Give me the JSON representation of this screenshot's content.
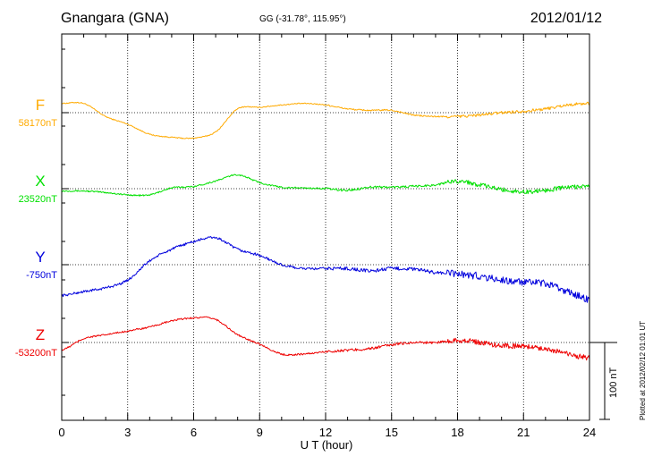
{
  "header": {
    "station": "Gnangara (GNA)",
    "coords": "GG (-31.78°, 115.95°)",
    "date": "2012/01/12"
  },
  "plotted_text": "Plotted at 2012/02/12 01:01  UT",
  "scale_text": "100 nT",
  "components": [
    {
      "letter": "F",
      "baseline": "58170nT",
      "color": "#ffaa00"
    },
    {
      "letter": "X",
      "baseline": "23520nT",
      "color": "#00e000"
    },
    {
      "letter": "Y",
      "baseline": "-750nT",
      "color": "#0000dd"
    },
    {
      "letter": "Z",
      "baseline": "-53200nT",
      "color": "#ee0000"
    }
  ],
  "chart_data": {
    "type": "line",
    "xlabel": "U T (hour)",
    "xlim": [
      0,
      24
    ],
    "xticks": [
      "0",
      "3",
      "6",
      "9",
      "12",
      "15",
      "18",
      "21",
      "24"
    ],
    "grid": true,
    "scale_bar_nT": 100,
    "units": "nT relative to baseline",
    "x": [
      0,
      1,
      2,
      3,
      4,
      5,
      6,
      7,
      8,
      9,
      10,
      11,
      12,
      13,
      14,
      15,
      16,
      17,
      18,
      19,
      20,
      21,
      22,
      23,
      24
    ],
    "series": [
      {
        "name": "F",
        "values": [
          12,
          12,
          -5,
          -15,
          -28,
          -32,
          -33,
          -25,
          5,
          7,
          10,
          12,
          10,
          5,
          3,
          3,
          -3,
          -5,
          -5,
          -3,
          0,
          2,
          5,
          10,
          12
        ]
      },
      {
        "name": "X",
        "values": [
          -3,
          -3,
          -5,
          -8,
          -8,
          1,
          3,
          10,
          18,
          8,
          2,
          1,
          0,
          -2,
          2,
          2,
          3,
          5,
          10,
          5,
          -1,
          -4,
          -2,
          2,
          3
        ]
      },
      {
        "name": "Y",
        "values": [
          -40,
          -35,
          -30,
          -20,
          5,
          20,
          30,
          35,
          20,
          12,
          0,
          -5,
          -5,
          -5,
          -8,
          -5,
          -6,
          -10,
          -12,
          -15,
          -20,
          -23,
          -25,
          -35,
          -45
        ]
      },
      {
        "name": "Z",
        "values": [
          -10,
          5,
          10,
          15,
          20,
          28,
          32,
          30,
          10,
          -2,
          -15,
          -15,
          -12,
          -10,
          -8,
          -3,
          0,
          0,
          3,
          0,
          -4,
          -5,
          -8,
          -15,
          -20
        ]
      }
    ]
  }
}
